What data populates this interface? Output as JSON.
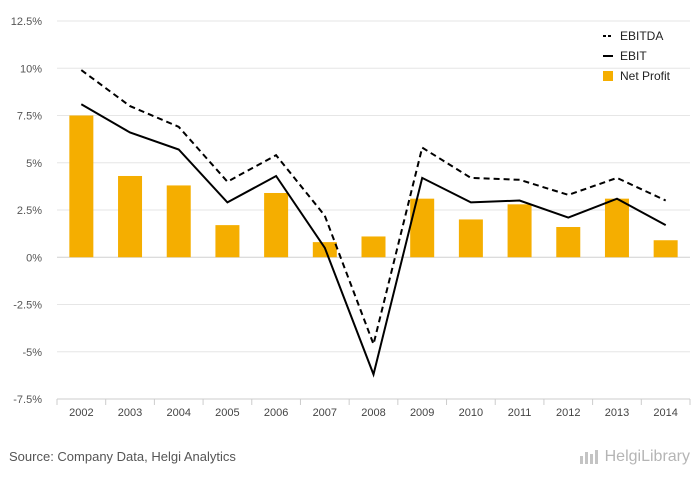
{
  "chart_data": {
    "type": "bar",
    "categories": [
      "2002",
      "2003",
      "2004",
      "2005",
      "2006",
      "2007",
      "2008",
      "2009",
      "2010",
      "2011",
      "2012",
      "2013",
      "2014"
    ],
    "series": [
      {
        "name": "EBITDA",
        "kind": "line",
        "style": "dashed",
        "color": "#000000",
        "values": [
          9.9,
          8.0,
          6.9,
          4.0,
          5.4,
          2.2,
          -4.6,
          5.8,
          4.2,
          4.1,
          3.3,
          4.2,
          3.0
        ]
      },
      {
        "name": "EBIT",
        "kind": "line",
        "style": "solid",
        "color": "#000000",
        "values": [
          8.1,
          6.6,
          5.7,
          2.9,
          4.3,
          0.5,
          -6.2,
          4.2,
          2.9,
          3.0,
          2.1,
          3.1,
          1.7
        ]
      },
      {
        "name": "Net Profit",
        "kind": "bar",
        "color": "#f5ae00",
        "values": [
          7.5,
          4.3,
          3.8,
          1.7,
          3.4,
          0.8,
          1.1,
          3.1,
          2.0,
          2.8,
          1.6,
          3.1,
          0.9
        ]
      }
    ],
    "yticks": [
      "12.5%",
      "10%",
      "7.5%",
      "5%",
      "2.5%",
      "0%",
      "-2.5%",
      "-5%",
      "-7.5%"
    ],
    "ytick_values": [
      12.5,
      10,
      7.5,
      5,
      2.5,
      0,
      -2.5,
      -5,
      -7.5
    ],
    "ylim": [
      -7.5,
      12.5
    ],
    "grid": true,
    "legend_position": "top-right"
  },
  "footer": {
    "source": "Source: Company Data, Helgi Analytics",
    "brand": "HelgiLibrary",
    "brand_icon": "bars-icon"
  }
}
